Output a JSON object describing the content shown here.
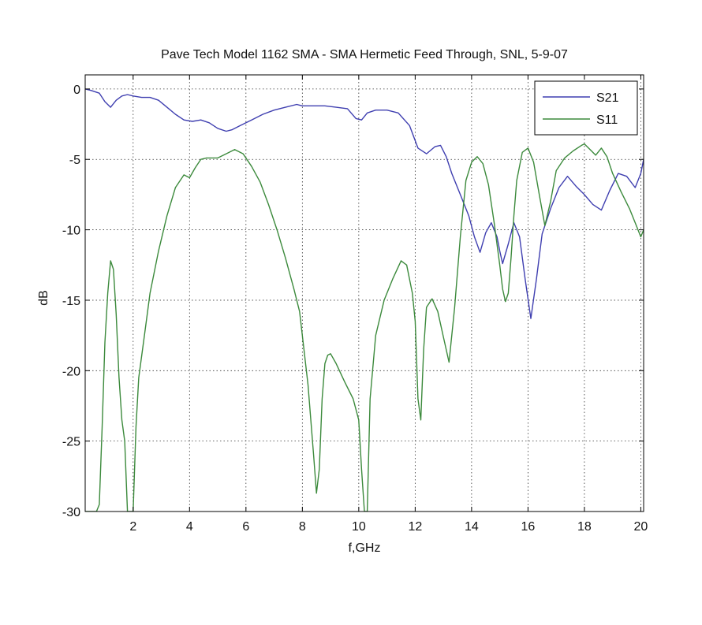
{
  "chart_data": {
    "type": "line",
    "title": "Pave Tech Model 1162 SMA - SMA Hermetic Feed Through, SNL, 5-9-07",
    "xlabel": "f,GHz",
    "ylabel": "dB",
    "xlim": [
      0.3,
      20.1
    ],
    "ylim": [
      -30,
      1
    ],
    "xticks": [
      2,
      4,
      6,
      8,
      10,
      12,
      14,
      16,
      18,
      20
    ],
    "yticks": [
      0,
      -5,
      -10,
      -15,
      -20,
      -25,
      -30
    ],
    "grid": true,
    "legend_position": "top-right",
    "series": [
      {
        "name": "S21",
        "color": "#3f3fb0",
        "x": [
          0.3,
          0.5,
          0.8,
          1.0,
          1.2,
          1.4,
          1.6,
          1.8,
          2.0,
          2.3,
          2.6,
          2.9,
          3.2,
          3.5,
          3.8,
          4.1,
          4.4,
          4.7,
          5.0,
          5.3,
          5.5,
          5.8,
          6.2,
          6.6,
          7.0,
          7.4,
          7.8,
          8.0,
          8.4,
          8.8,
          9.2,
          9.6,
          9.9,
          10.1,
          10.3,
          10.6,
          11.0,
          11.4,
          11.8,
          12.1,
          12.4,
          12.7,
          12.9,
          13.1,
          13.3,
          13.6,
          13.9,
          14.1,
          14.3,
          14.5,
          14.7,
          14.9,
          15.0,
          15.1,
          15.3,
          15.5,
          15.7,
          15.9,
          16.1,
          16.3,
          16.5,
          16.8,
          17.1,
          17.4,
          17.7,
          18.0,
          18.3,
          18.6,
          18.9,
          19.2,
          19.5,
          19.8,
          20.0,
          20.1
        ],
        "y": [
          0,
          -0.1,
          -0.3,
          -0.9,
          -1.3,
          -0.8,
          -0.5,
          -0.4,
          -0.5,
          -0.6,
          -0.6,
          -0.8,
          -1.3,
          -1.8,
          -2.2,
          -2.3,
          -2.2,
          -2.4,
          -2.8,
          -3.0,
          -2.9,
          -2.6,
          -2.2,
          -1.8,
          -1.5,
          -1.3,
          -1.1,
          -1.2,
          -1.2,
          -1.2,
          -1.3,
          -1.4,
          -2.1,
          -2.2,
          -1.7,
          -1.5,
          -1.5,
          -1.7,
          -2.6,
          -4.2,
          -4.6,
          -4.1,
          -4.0,
          -4.8,
          -6.0,
          -7.5,
          -9.0,
          -10.5,
          -11.6,
          -10.2,
          -9.5,
          -10.5,
          -11.5,
          -12.4,
          -11.0,
          -9.5,
          -10.5,
          -13.5,
          -16.3,
          -13.5,
          -10.3,
          -8.5,
          -7.0,
          -6.2,
          -6.9,
          -7.5,
          -8.2,
          -8.6,
          -7.2,
          -6.0,
          -6.2,
          -7.0,
          -6.0,
          -5.0
        ]
      },
      {
        "name": "S11",
        "color": "#3c8a3c",
        "x": [
          0.3,
          0.5,
          0.7,
          0.8,
          0.9,
          1.0,
          1.1,
          1.2,
          1.3,
          1.4,
          1.5,
          1.6,
          1.7,
          1.8,
          1.9,
          2.0,
          2.1,
          2.2,
          2.3,
          2.4,
          2.6,
          2.9,
          3.2,
          3.5,
          3.8,
          4.0,
          4.2,
          4.4,
          4.6,
          5.0,
          5.3,
          5.6,
          5.9,
          6.2,
          6.5,
          6.8,
          7.1,
          7.4,
          7.7,
          7.9,
          8.0,
          8.2,
          8.4,
          8.5,
          8.6,
          8.7,
          8.8,
          8.9,
          9.0,
          9.2,
          9.5,
          9.8,
          10.0,
          10.1,
          10.2,
          10.3,
          10.4,
          10.6,
          10.9,
          11.2,
          11.5,
          11.7,
          11.9,
          12.0,
          12.1,
          12.2,
          12.3,
          12.4,
          12.6,
          12.8,
          13.0,
          13.2,
          13.4,
          13.6,
          13.8,
          14.0,
          14.2,
          14.4,
          14.6,
          14.8,
          15.0,
          15.1,
          15.2,
          15.3,
          15.4,
          15.5,
          15.6,
          15.8,
          16.0,
          16.2,
          16.4,
          16.6,
          16.8,
          17.0,
          17.3,
          17.6,
          17.9,
          18.0,
          18.2,
          18.4,
          18.6,
          18.8,
          19.0,
          19.3,
          19.6,
          19.8,
          20.0,
          20.1
        ],
        "y": [
          -30,
          -30,
          -30,
          -29.5,
          -24.0,
          -18.0,
          -14.5,
          -12.2,
          -12.8,
          -16.0,
          -20.5,
          -23.5,
          -25.0,
          -30,
          -30,
          -30,
          -24.0,
          -20.5,
          -19.0,
          -17.5,
          -14.5,
          -11.5,
          -9.0,
          -7.0,
          -6.1,
          -6.3,
          -5.6,
          -5.0,
          -4.9,
          -4.9,
          -4.6,
          -4.3,
          -4.6,
          -5.5,
          -6.6,
          -8.2,
          -10.0,
          -12.0,
          -14.2,
          -15.8,
          -17.5,
          -21.0,
          -26.0,
          -28.7,
          -27.0,
          -22.0,
          -19.5,
          -18.9,
          -18.8,
          -19.5,
          -20.8,
          -22.0,
          -23.5,
          -27.0,
          -30,
          -30,
          -22.0,
          -17.5,
          -15.0,
          -13.5,
          -12.2,
          -12.5,
          -14.5,
          -16.5,
          -22.0,
          -23.5,
          -18.5,
          -15.5,
          -14.9,
          -15.8,
          -17.6,
          -19.4,
          -15.5,
          -10.5,
          -6.5,
          -5.2,
          -4.8,
          -5.3,
          -6.8,
          -9.5,
          -12.5,
          -14.2,
          -15.1,
          -14.5,
          -12.0,
          -9.0,
          -6.5,
          -4.5,
          -4.2,
          -5.2,
          -7.5,
          -9.7,
          -8.0,
          -5.8,
          -4.9,
          -4.4,
          -4.0,
          -3.9,
          -4.3,
          -4.7,
          -4.2,
          -4.8,
          -6.0,
          -7.3,
          -8.5,
          -9.5,
          -10.5,
          -10.0
        ]
      }
    ]
  }
}
